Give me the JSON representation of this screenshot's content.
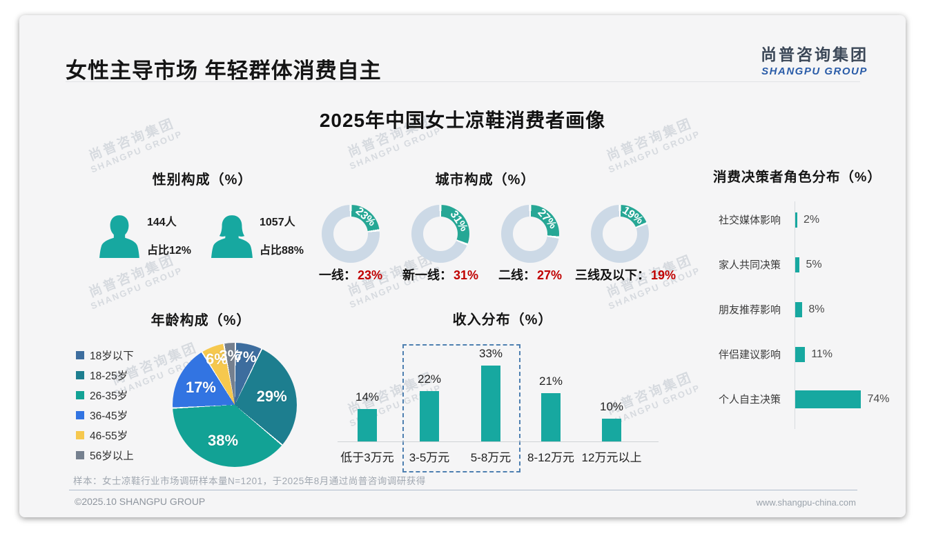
{
  "page": {
    "title": "女性主导市场 年轻群体消费自主",
    "main_title": "2025年中国女士凉鞋消费者画像",
    "logo": {
      "cn": "尚普咨询集团",
      "en": "SHANGPU GROUP"
    },
    "watermark": {
      "cn": "尚普咨询集团",
      "en": "SHANGPU GROUP"
    },
    "sample_note": "样本：女士凉鞋行业市场调研样本量N=1201，于2025年8月通过尚普咨询调研获得",
    "footer_left": "©2025.10 SHANGPU GROUP",
    "footer_right": "www.shangpu-china.com"
  },
  "colors": {
    "teal": "#17a8a0",
    "donut_ring": "#ccd9e6",
    "donut_teal": "#26a795",
    "red_value": "#c00000",
    "highlight_dash": "#4d7fb0"
  },
  "chart_data": [
    {
      "id": "gender",
      "type": "icon-stat",
      "title": "性别构成（%）",
      "items": [
        {
          "icon": "male-icon",
          "count": "144人",
          "share": "占比12%"
        },
        {
          "icon": "female-icon",
          "count": "1057人",
          "share": "占比88%"
        }
      ]
    },
    {
      "id": "city",
      "type": "donut",
      "title": "城市构成（%）",
      "unit": "%",
      "colon": "：",
      "items": [
        {
          "label": "一线",
          "value": 23
        },
        {
          "label": "新一线",
          "value": 31
        },
        {
          "label": "二线",
          "value": 27
        },
        {
          "label": "三线及以下",
          "value": 19
        }
      ]
    },
    {
      "id": "decision",
      "type": "bar-horizontal",
      "title": "消费决策者角色分布（%）",
      "unit": "%",
      "categories": [
        "社交媒体影响",
        "家人共同决策",
        "朋友推荐影响",
        "伴侣建议影响",
        "个人自主决策"
      ],
      "values": [
        2,
        5,
        8,
        11,
        74
      ],
      "xlim": [
        0,
        100
      ]
    },
    {
      "id": "age",
      "type": "pie",
      "title": "年龄构成（%）",
      "unit": "%",
      "categories": [
        "18岁以下",
        "18-25岁",
        "26-35岁",
        "36-45岁",
        "46-55岁",
        "56岁以上"
      ],
      "values": [
        7,
        29,
        38,
        17,
        6,
        3
      ],
      "slice_colors": [
        "#3d6d9e",
        "#1d7e8f",
        "#12a295",
        "#3274e2",
        "#f6c84e",
        "#75808f"
      ],
      "legend_position": "left"
    },
    {
      "id": "income",
      "type": "bar",
      "title": "收入分布（%）",
      "unit": "%",
      "categories": [
        "低于3万元",
        "3-5万元",
        "5-8万元",
        "8-12万元",
        "12万元以上"
      ],
      "values": [
        14,
        22,
        33,
        21,
        10
      ],
      "highlight_categories": [
        "3-5万元",
        "5-8万元"
      ],
      "ylim": [
        0,
        40
      ]
    }
  ]
}
